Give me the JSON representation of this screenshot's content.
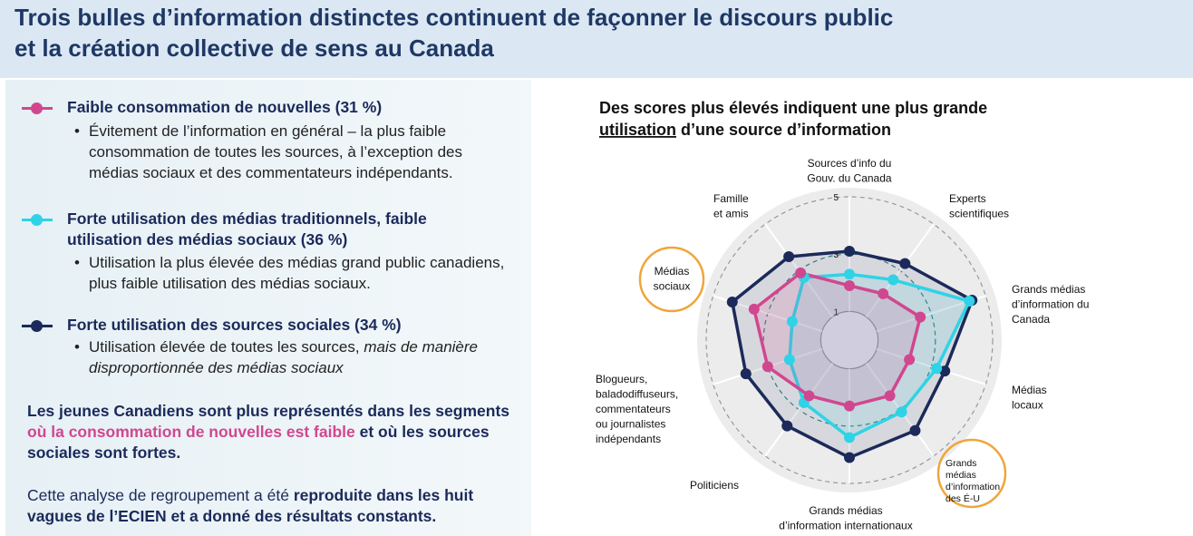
{
  "header": {
    "title_lines": [
      "Trois bulles d’information distinctes continuent de façonner le discours public",
      "et la création collective de sens au Canada"
    ]
  },
  "segments": [
    {
      "bullet": [
        {
          "text": "Évitement de l’information en général – la plus faible consommation de toutes les sources, à l’exception des médias sociaux et des commentateurs indépendants.",
          "italic": false
        }
      ]
    },
    {
      "bullet": [
        {
          "text": "Utilisation la plus élevée des médias grand public canadiens, plus faible utilisation des médias sociaux.",
          "italic": false
        }
      ]
    },
    {
      "bullet": [
        {
          "text": "Utilisation élevée de toutes les sources, ",
          "italic": false
        },
        {
          "text": "mais de manière disproportionnée des médias sociaux",
          "italic": true
        }
      ]
    }
  ],
  "notes": {
    "youth": [
      "Les jeunes Canadiens sont plus représentés dans les segments ",
      "où la consommation de nouvelles est faible",
      " et où les sources sociales sont fortes."
    ],
    "analysis": [
      "Cette analyse de regroupement a été ",
      "reproduite dans les huit vagues de l’ECIEN et a donné des résultats constants."
    ]
  },
  "chart_data": {
    "type": "radar",
    "title": [
      "Des scores plus élevés indiquent une plus grande ",
      "utilisation",
      " d’une source d’information"
    ],
    "categories": [
      "Sources d’info du\nGouv. du Canada",
      "Experts\nscientifiques",
      "Grands médias\nd’information du\nCanada",
      "Médias\nlocaux",
      "Grands\nmédias\nd’information\ndes É-U",
      "Grands médias\nd’information internationaux",
      "Politiciens",
      "Blogueurs,\nbaladodiffuseurs,\ncommentateurs\nou journalistes\nindépendants",
      "Médias\nsociaux",
      "Famille\net amis"
    ],
    "series": [
      {
        "name": "Forte utilisation des sources sociales (34 %)",
        "color": "#1b2a5a",
        "values": [
          3.1,
          3.3,
          4.5,
          3.5,
          3.9,
          4.1,
          3.7,
          3.8,
          4.3,
          3.6
        ]
      },
      {
        "name": "Forte utilisation des médias traditionnels, faible utilisation des médias sociaux (36 %)",
        "color": "#2fd3e6",
        "values": [
          2.3,
          2.6,
          4.4,
          3.2,
          3.1,
          3.4,
          2.7,
          2.2,
          2.1,
          2.7
        ]
      },
      {
        "name": "Faible consommation de nouvelles (31 %)",
        "color": "#d1478f",
        "values": [
          1.9,
          2.0,
          2.6,
          2.2,
          2.4,
          2.3,
          2.4,
          3.0,
          3.5,
          2.9
        ]
      }
    ],
    "ylim": [
      0,
      5
    ],
    "yticks": [
      1,
      3,
      5
    ]
  }
}
